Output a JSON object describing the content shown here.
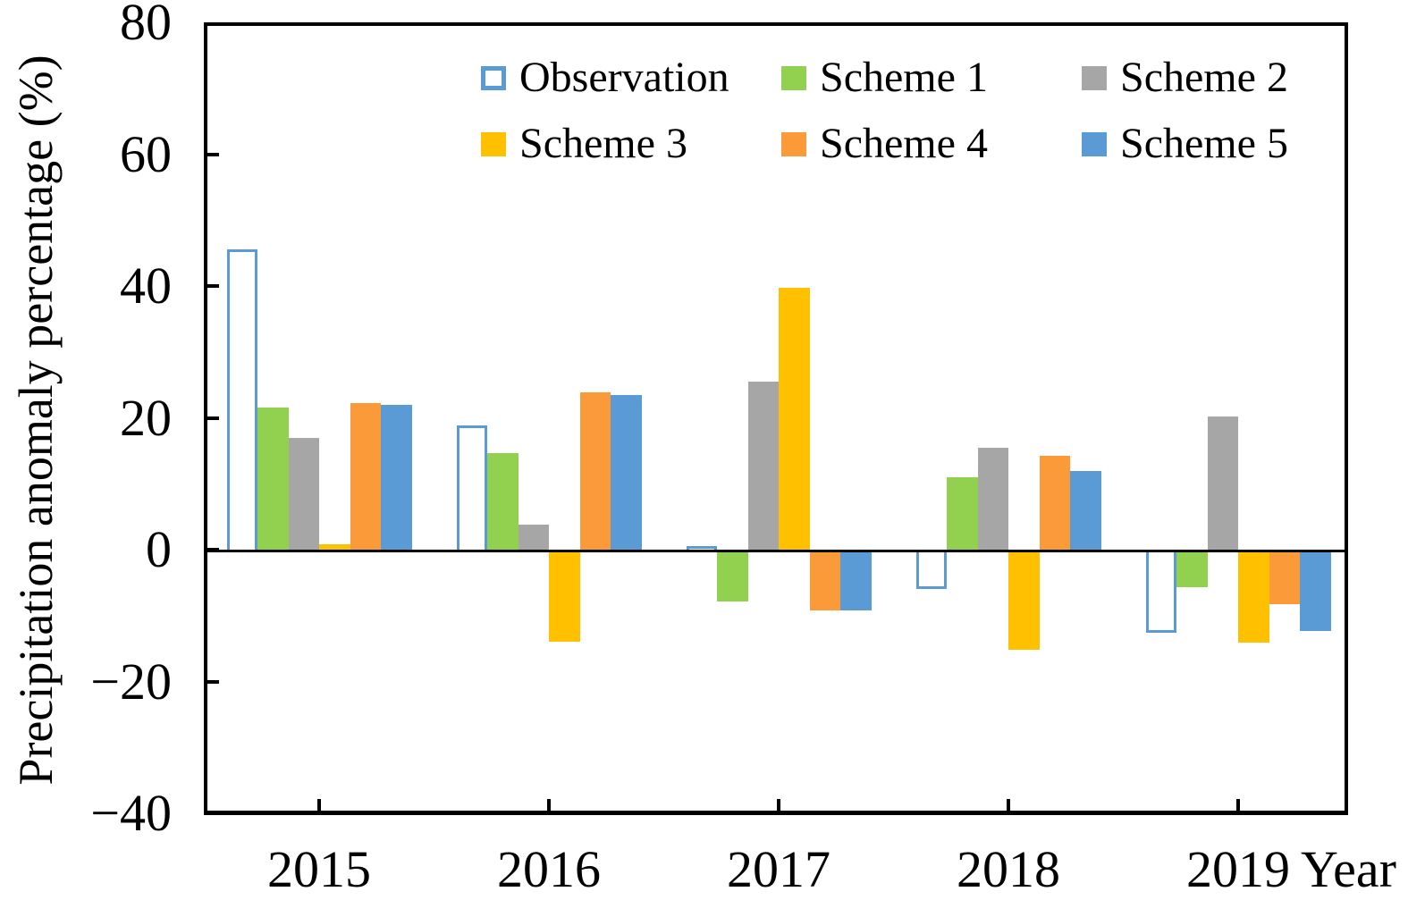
{
  "chart_data": {
    "type": "bar",
    "title": "",
    "ylabel": "Precipitation anomaly percentage (%)",
    "xlabel": "Year",
    "ylim": [
      -40,
      80
    ],
    "yticks": [
      80,
      60,
      40,
      20,
      0,
      -20,
      -40
    ],
    "grid": false,
    "legend_position": "top-inside, 2 rows x 3 columns",
    "categories": [
      "2015",
      "2016",
      "2017",
      "2018",
      "2019"
    ],
    "series": [
      {
        "name": "Observation",
        "style": "hollow",
        "color": "#5B9BD5",
        "values": [
          45.5,
          18.8,
          0.5,
          -5.5,
          -12.2
        ]
      },
      {
        "name": "Scheme 1",
        "style": "filled",
        "color": "#92D050",
        "values": [
          21.5,
          14.7,
          -7.4,
          11.0,
          -5.3
        ]
      },
      {
        "name": "Scheme 2",
        "style": "filled",
        "color": "#A6A6A6",
        "values": [
          17.0,
          3.8,
          25.5,
          15.5,
          20.2
        ]
      },
      {
        "name": "Scheme 3",
        "style": "filled",
        "color": "#FFC000",
        "values": [
          0.8,
          -13.5,
          39.7,
          -14.8,
          -13.7
        ]
      },
      {
        "name": "Scheme 4",
        "style": "filled",
        "color": "#FB9A38",
        "values": [
          22.3,
          23.8,
          -8.8,
          14.2,
          -7.8
        ]
      },
      {
        "name": "Scheme 5",
        "style": "filled",
        "color": "#5B9BD5",
        "values": [
          22.0,
          23.5,
          -8.8,
          12.0,
          -11.9
        ]
      }
    ]
  }
}
